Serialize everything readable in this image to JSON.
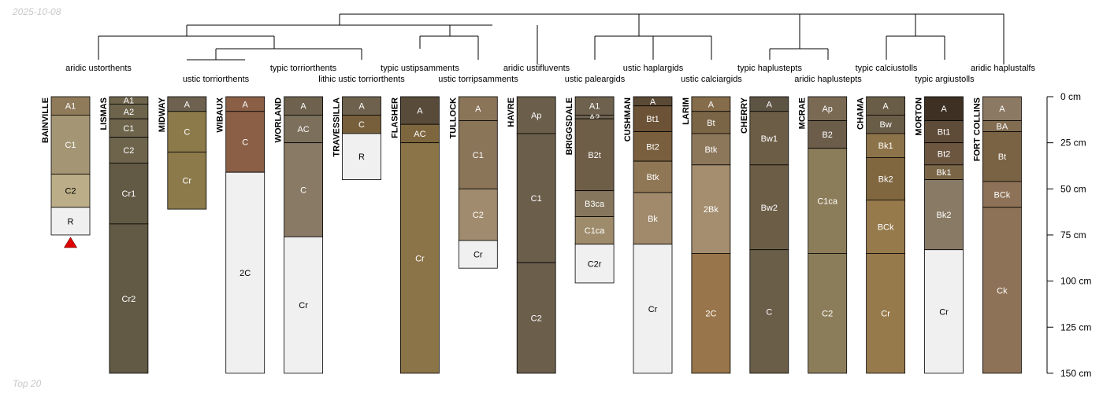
{
  "date": "2025-10-08",
  "footer": "Top 20",
  "profiles": [
    {
      "name": "BAINVILLE",
      "horizons": [
        {
          "name": "A1",
          "top": 0,
          "bottom": 10,
          "color": "#8f7a5a"
        },
        {
          "name": "C1",
          "top": 10,
          "bottom": 42,
          "color": "#a49674"
        },
        {
          "name": "C2",
          "top": 42,
          "bottom": 60,
          "color": "#bbad87"
        },
        {
          "name": "R",
          "top": 60,
          "bottom": 75,
          "color": "#f0f0f0"
        }
      ]
    },
    {
      "name": "LISMAS",
      "horizons": [
        {
          "name": "A1",
          "top": 0,
          "bottom": 4,
          "color": "#6e644c"
        },
        {
          "name": "A2",
          "top": 4,
          "bottom": 12,
          "color": "#6e644c"
        },
        {
          "name": "C1",
          "top": 12,
          "bottom": 22,
          "color": "#6e644c"
        },
        {
          "name": "C2",
          "top": 22,
          "bottom": 36,
          "color": "#6e644c"
        },
        {
          "name": "Cr1",
          "top": 36,
          "bottom": 69,
          "color": "#625a45"
        },
        {
          "name": "Cr2",
          "top": 69,
          "bottom": 150,
          "color": "#625a45"
        }
      ]
    },
    {
      "name": "MIDWAY",
      "horizons": [
        {
          "name": "A",
          "top": 0,
          "bottom": 8,
          "color": "#6e6150"
        },
        {
          "name": "C",
          "top": 8,
          "bottom": 30,
          "color": "#8c7a4b"
        },
        {
          "name": "Cr",
          "top": 30,
          "bottom": 61,
          "color": "#8c7a4b"
        }
      ]
    },
    {
      "name": "WIBAUX",
      "horizons": [
        {
          "name": "A",
          "top": 0,
          "bottom": 8,
          "color": "#8a5f46"
        },
        {
          "name": "C",
          "top": 8,
          "bottom": 41,
          "color": "#8a5f46"
        },
        {
          "name": "2C",
          "top": 41,
          "bottom": 150,
          "color": "#f0f0f0"
        }
      ]
    },
    {
      "name": "WORLAND",
      "horizons": [
        {
          "name": "A",
          "top": 0,
          "bottom": 10,
          "color": "#6e624f"
        },
        {
          "name": "AC",
          "top": 10,
          "bottom": 25,
          "color": "#7c6f5b"
        },
        {
          "name": "C",
          "top": 25,
          "bottom": 76,
          "color": "#887a65"
        },
        {
          "name": "Cr",
          "top": 76,
          "bottom": 150,
          "color": "#f0f0f0"
        }
      ]
    },
    {
      "name": "TRAVESSILLA",
      "horizons": [
        {
          "name": "A",
          "top": 0,
          "bottom": 10,
          "color": "#6e624f"
        },
        {
          "name": "C",
          "top": 10,
          "bottom": 20,
          "color": "#775f3c"
        },
        {
          "name": "R",
          "top": 20,
          "bottom": 45,
          "color": "#f0f0f0"
        }
      ]
    },
    {
      "name": "FLASHER",
      "horizons": [
        {
          "name": "A",
          "top": 0,
          "bottom": 15,
          "color": "#594b3a"
        },
        {
          "name": "AC",
          "top": 15,
          "bottom": 25,
          "color": "#7e673f"
        },
        {
          "name": "Cr",
          "top": 25,
          "bottom": 150,
          "color": "#8b7448"
        }
      ]
    },
    {
      "name": "TULLOCK",
      "horizons": [
        {
          "name": "A",
          "top": 0,
          "bottom": 13,
          "color": "#8b7559"
        },
        {
          "name": "C1",
          "top": 13,
          "bottom": 50,
          "color": "#8b7559"
        },
        {
          "name": "C2",
          "top": 50,
          "bottom": 78,
          "color": "#a18b6e"
        },
        {
          "name": "Cr",
          "top": 78,
          "bottom": 93,
          "color": "#f0f0f0"
        }
      ]
    },
    {
      "name": "HAVRE",
      "horizons": [
        {
          "name": "Ap",
          "top": 0,
          "bottom": 20,
          "color": "#6b5e4b"
        },
        {
          "name": "C1",
          "top": 20,
          "bottom": 90,
          "color": "#6b5e4b"
        },
        {
          "name": "C2",
          "top": 90,
          "bottom": 150,
          "color": "#6b5e4b"
        }
      ]
    },
    {
      "name": "BRIGGSDALE",
      "horizons": [
        {
          "name": "A1",
          "top": 0,
          "bottom": 10,
          "color": "#6e624f"
        },
        {
          "name": "A2",
          "top": 10,
          "bottom": 12,
          "color": "#6e624f"
        },
        {
          "name": "B2t",
          "top": 12,
          "bottom": 51,
          "color": "#6e5d47"
        },
        {
          "name": "B3ca",
          "top": 51,
          "bottom": 65,
          "color": "#85765d"
        },
        {
          "name": "C1ca",
          "top": 65,
          "bottom": 80,
          "color": "#9e8b6b"
        },
        {
          "name": "C2r",
          "top": 80,
          "bottom": 101,
          "color": "#f0f0f0"
        }
      ]
    },
    {
      "name": "CUSHMAN",
      "horizons": [
        {
          "name": "A",
          "top": 0,
          "bottom": 5,
          "color": "#5a4935"
        },
        {
          "name": "Bt1",
          "top": 5,
          "bottom": 19,
          "color": "#6c5236"
        },
        {
          "name": "Bt2",
          "top": 19,
          "bottom": 35,
          "color": "#7a5f3e"
        },
        {
          "name": "Btk",
          "top": 35,
          "bottom": 52,
          "color": "#8f7654"
        },
        {
          "name": "Bk",
          "top": 52,
          "bottom": 80,
          "color": "#a08a6b"
        },
        {
          "name": "Cr",
          "top": 80,
          "bottom": 150,
          "color": "#f0f0f0"
        }
      ]
    },
    {
      "name": "LARIM",
      "horizons": [
        {
          "name": "A",
          "top": 0,
          "bottom": 8,
          "color": "#856c4a"
        },
        {
          "name": "Bt",
          "top": 8,
          "bottom": 20,
          "color": "#7a6547"
        },
        {
          "name": "Btk",
          "top": 20,
          "bottom": 37,
          "color": "#8c775b"
        },
        {
          "name": "2Bk",
          "top": 37,
          "bottom": 85,
          "color": "#a48e6f"
        },
        {
          "name": "2C",
          "top": 85,
          "bottom": 150,
          "color": "#98754a"
        }
      ]
    },
    {
      "name": "CHERRY",
      "horizons": [
        {
          "name": "A",
          "top": 0,
          "bottom": 8,
          "color": "#5d5444"
        },
        {
          "name": "Bw1",
          "top": 8,
          "bottom": 37,
          "color": "#6c5d47"
        },
        {
          "name": "Bw2",
          "top": 37,
          "bottom": 83,
          "color": "#6c5d47"
        },
        {
          "name": "C",
          "top": 83,
          "bottom": 150,
          "color": "#6a5e49"
        }
      ]
    },
    {
      "name": "MCRAE",
      "horizons": [
        {
          "name": "Ap",
          "top": 0,
          "bottom": 13,
          "color": "#7a6a54"
        },
        {
          "name": "B2",
          "top": 13,
          "bottom": 28,
          "color": "#6c5d4a"
        },
        {
          "name": "C1ca",
          "top": 28,
          "bottom": 85,
          "color": "#8c7d5a"
        },
        {
          "name": "C2",
          "top": 85,
          "bottom": 150,
          "color": "#8c7d5a"
        }
      ]
    },
    {
      "name": "CHAMA",
      "horizons": [
        {
          "name": "A",
          "top": 0,
          "bottom": 10,
          "color": "#6a5d48"
        },
        {
          "name": "Bw",
          "top": 10,
          "bottom": 20,
          "color": "#6a5d48"
        },
        {
          "name": "Bk1",
          "top": 20,
          "bottom": 33,
          "color": "#8d7349"
        },
        {
          "name": "Bk2",
          "top": 33,
          "bottom": 56,
          "color": "#806740"
        },
        {
          "name": "BCk",
          "top": 56,
          "bottom": 85,
          "color": "#977a4c"
        },
        {
          "name": "Cr",
          "top": 85,
          "bottom": 150,
          "color": "#977a4c"
        }
      ]
    },
    {
      "name": "MORTON",
      "horizons": [
        {
          "name": "A",
          "top": 0,
          "bottom": 13,
          "color": "#3e3124"
        },
        {
          "name": "Bt1",
          "top": 13,
          "bottom": 25,
          "color": "#5e4b38"
        },
        {
          "name": "Bt2",
          "top": 25,
          "bottom": 37,
          "color": "#6c5640"
        },
        {
          "name": "Bk1",
          "top": 37,
          "bottom": 45,
          "color": "#7a6647"
        },
        {
          "name": "Bk2",
          "top": 45,
          "bottom": 83,
          "color": "#887a64"
        },
        {
          "name": "Cr",
          "top": 83,
          "bottom": 150,
          "color": "#f0f0f0"
        }
      ]
    },
    {
      "name": "FORT COLLINS",
      "horizons": [
        {
          "name": "A",
          "top": 0,
          "bottom": 13,
          "color": "#8c7963"
        },
        {
          "name": "BA",
          "top": 13,
          "bottom": 19,
          "color": "#826d52"
        },
        {
          "name": "Bt",
          "top": 19,
          "bottom": 46,
          "color": "#7a6244"
        },
        {
          "name": "BCk",
          "top": 46,
          "bottom": 60,
          "color": "#8d7257"
        },
        {
          "name": "Ck",
          "top": 60,
          "bottom": 150,
          "color": "#8d7257"
        }
      ]
    }
  ],
  "taxa": [
    {
      "label": "aridic ustorthents",
      "row": 0
    },
    {
      "label": "ustic torriorthents",
      "row": 1
    },
    {
      "label": "typic torriorthents",
      "row": 0
    },
    {
      "label": "lithic ustic torriorthents",
      "row": 1
    },
    {
      "label": "typic ustipsamments",
      "row": 0
    },
    {
      "label": "ustic torripsamments",
      "row": 1
    },
    {
      "label": "aridic ustifluvents",
      "row": 0
    },
    {
      "label": "ustic paleargids",
      "row": 1
    },
    {
      "label": "ustic haplargids",
      "row": 0
    },
    {
      "label": "ustic calciargids",
      "row": 1
    },
    {
      "label": "typic haplustepts",
      "row": 0
    },
    {
      "label": "aridic haplustepts",
      "row": 1
    },
    {
      "label": "typic calciustolls",
      "row": 0
    },
    {
      "label": "typic argiustolls",
      "row": 1
    },
    {
      "label": "aridic haplustalfs",
      "row": 0
    }
  ],
  "depth_axis": {
    "ticks": [
      0,
      25,
      50,
      75,
      100,
      125,
      150
    ],
    "unit": "cm",
    "max": 150
  },
  "marker": {
    "profile": "BAINVILLE",
    "color": "#e00000"
  }
}
